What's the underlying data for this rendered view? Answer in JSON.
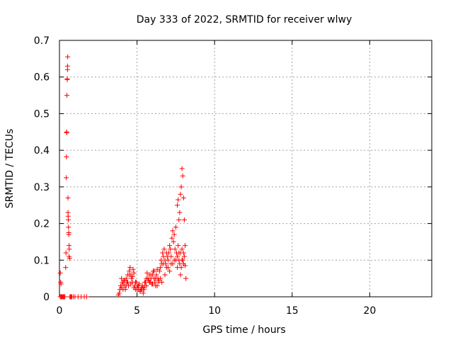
{
  "chart_data": {
    "type": "scatter",
    "title": "Day 333 of 2022, SRMTID for receiver wlwy",
    "xlabel": "GPS time / hours",
    "ylabel": "SRMTID / TECUs",
    "xlim": [
      0,
      24
    ],
    "ylim": [
      0,
      0.7
    ],
    "xticks": [
      0,
      5,
      10,
      15,
      20
    ],
    "yticks": [
      0,
      0.1,
      0.2,
      0.3,
      0.4,
      0.5,
      0.6,
      0.7
    ],
    "xtick_labels": [
      "0",
      "5",
      "10",
      "15",
      "20"
    ],
    "ytick_labels": [
      "0",
      "0.1",
      "0.2",
      "0.3",
      "0.4",
      "0.5",
      "0.6",
      "0.7"
    ],
    "grid": true,
    "marker": "+",
    "marker_color": "#ff0000",
    "series": [
      {
        "name": "SRMTID",
        "x": [
          0.05,
          0.08,
          0.1,
          0.12,
          0.15,
          0.2,
          0.25,
          0.3,
          0.35,
          0.4,
          0.42,
          0.44,
          0.45,
          0.46,
          0.47,
          0.48,
          0.5,
          0.5,
          0.52,
          0.52,
          0.53,
          0.55,
          0.55,
          0.56,
          0.57,
          0.58,
          0.6,
          0.6,
          0.62,
          0.62,
          0.63,
          0.65,
          0.67,
          0.7,
          0.75,
          0.8,
          0.9,
          1.0,
          1.2,
          1.4,
          1.6,
          1.75,
          0.1,
          0.15,
          0.05,
          3.8,
          3.85,
          3.9,
          3.95,
          4.0,
          4.05,
          4.1,
          4.15,
          4.2,
          4.25,
          4.3,
          4.35,
          4.4,
          4.45,
          4.5,
          4.55,
          4.6,
          4.65,
          4.7,
          4.75,
          4.8,
          4.85,
          4.9,
          4.95,
          5.0,
          5.05,
          5.1,
          5.15,
          5.2,
          5.25,
          5.3,
          5.35,
          5.4,
          5.45,
          5.5,
          5.55,
          5.6,
          5.65,
          5.7,
          5.75,
          5.8,
          5.85,
          5.9,
          5.95,
          6.0,
          6.05,
          6.1,
          6.15,
          6.2,
          6.25,
          6.3,
          6.35,
          6.4,
          6.45,
          6.5,
          6.55,
          6.6,
          6.65,
          6.7,
          6.75,
          6.8,
          6.85,
          6.9,
          6.95,
          7.0,
          7.05,
          7.1,
          7.15,
          7.2,
          7.25,
          7.3,
          7.35,
          7.4,
          7.45,
          7.5,
          7.55,
          7.6,
          7.65,
          7.7,
          7.75,
          7.8,
          7.85,
          7.9,
          7.95,
          8.0,
          8.05,
          8.1,
          8.15,
          4.0,
          4.2,
          4.4,
          4.6,
          4.8,
          5.0,
          5.2,
          5.4,
          5.6,
          5.8,
          6.0,
          6.2,
          6.4,
          6.6,
          6.8,
          7.0,
          7.2,
          7.4,
          7.6,
          7.8,
          8.0,
          4.1,
          4.3,
          4.5,
          4.7,
          4.9,
          5.1,
          5.3,
          5.5,
          5.7,
          5.9,
          6.1,
          6.3,
          6.5,
          6.7,
          6.9,
          7.1,
          7.3,
          7.5,
          7.7,
          7.9,
          8.1,
          7.6,
          7.65,
          7.7,
          7.75,
          7.8,
          7.85,
          7.9,
          7.95,
          8.0,
          8.05
        ],
        "y": [
          0.065,
          0.04,
          0.035,
          0.0,
          0.0,
          0.0,
          0.0,
          0.0,
          0.0,
          0.08,
          0.12,
          0.325,
          0.382,
          0.45,
          0.448,
          0.55,
          0.595,
          0.593,
          0.62,
          0.63,
          0.655,
          0.27,
          0.23,
          0.22,
          0.21,
          0.19,
          0.17,
          0.175,
          0.14,
          0.11,
          0.13,
          0.105,
          0.0,
          0.0,
          0.0,
          0.0,
          0.0,
          0.0,
          0.0,
          0.0,
          0.0,
          0.0,
          0.0,
          0.0,
          0.0,
          0.005,
          0.01,
          0.02,
          0.03,
          0.025,
          0.04,
          0.035,
          0.045,
          0.03,
          0.02,
          0.05,
          0.04,
          0.06,
          0.03,
          0.07,
          0.08,
          0.06,
          0.05,
          0.04,
          0.075,
          0.065,
          0.03,
          0.02,
          0.04,
          0.025,
          0.03,
          0.02,
          0.035,
          0.015,
          0.02,
          0.025,
          0.03,
          0.01,
          0.02,
          0.03,
          0.04,
          0.05,
          0.065,
          0.05,
          0.045,
          0.06,
          0.04,
          0.05,
          0.035,
          0.06,
          0.07,
          0.05,
          0.04,
          0.03,
          0.06,
          0.075,
          0.05,
          0.04,
          0.07,
          0.08,
          0.1,
          0.09,
          0.12,
          0.11,
          0.13,
          0.1,
          0.09,
          0.08,
          0.11,
          0.1,
          0.12,
          0.14,
          0.13,
          0.11,
          0.16,
          0.18,
          0.15,
          0.17,
          0.13,
          0.19,
          0.12,
          0.11,
          0.14,
          0.1,
          0.09,
          0.12,
          0.08,
          0.13,
          0.1,
          0.12,
          0.11,
          0.14,
          0.05,
          0.05,
          0.045,
          0.04,
          0.035,
          0.025,
          0.02,
          0.015,
          0.025,
          0.03,
          0.04,
          0.035,
          0.05,
          0.045,
          0.04,
          0.06,
          0.08,
          0.09,
          0.1,
          0.08,
          0.06,
          0.09,
          0.02,
          0.03,
          0.06,
          0.055,
          0.04,
          0.03,
          0.02,
          0.04,
          0.05,
          0.06,
          0.07,
          0.03,
          0.05,
          0.09,
          0.12,
          0.07,
          0.09,
          0.1,
          0.12,
          0.1,
          0.085,
          0.25,
          0.265,
          0.21,
          0.23,
          0.28,
          0.3,
          0.35,
          0.33,
          0.27,
          0.21
        ]
      }
    ]
  }
}
